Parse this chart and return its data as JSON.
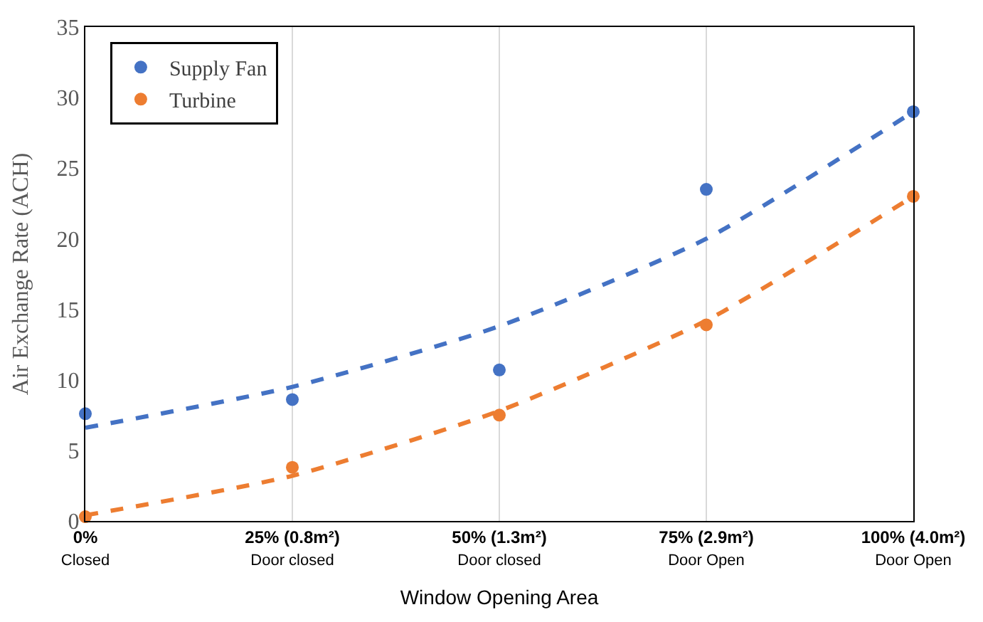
{
  "chart_data": {
    "type": "scatter",
    "xlabel": "Window Opening Area",
    "ylabel": "Air Exchange Rate (ACH)",
    "categories": [
      "0%\nClosed",
      "25% (0.8m²)\nDoor closed",
      "50% (1.3m²)\nDoor closed",
      "75% (2.9m²)\nDoor Open",
      "100% (4.0m²)\nDoor Open"
    ],
    "ylim": [
      0,
      35
    ],
    "yticks": [
      0,
      5,
      10,
      15,
      20,
      25,
      30,
      35
    ],
    "grid": "x",
    "legend": "top left",
    "marker": "circle",
    "series": [
      {
        "name": "Supply Fan",
        "color": "#4472c4",
        "values": [
          7.6,
          8.6,
          10.7,
          23.5,
          29.0
        ]
      },
      {
        "name": "Turbine",
        "color": "#ed7d31",
        "values": [
          0.3,
          3.8,
          7.5,
          13.9,
          23.0
        ]
      },
      {
        "type": "line",
        "line_style": "dashed",
        "marker": "none",
        "color": "#4472c4",
        "values": [
          6.6,
          9.5,
          13.8,
          20.0,
          29.0
        ]
      },
      {
        "type": "line",
        "line_style": "dashed",
        "marker": "none",
        "color": "#ed7d31",
        "values": [
          0.4,
          3.2,
          7.8,
          14.2,
          23.0
        ]
      }
    ]
  }
}
